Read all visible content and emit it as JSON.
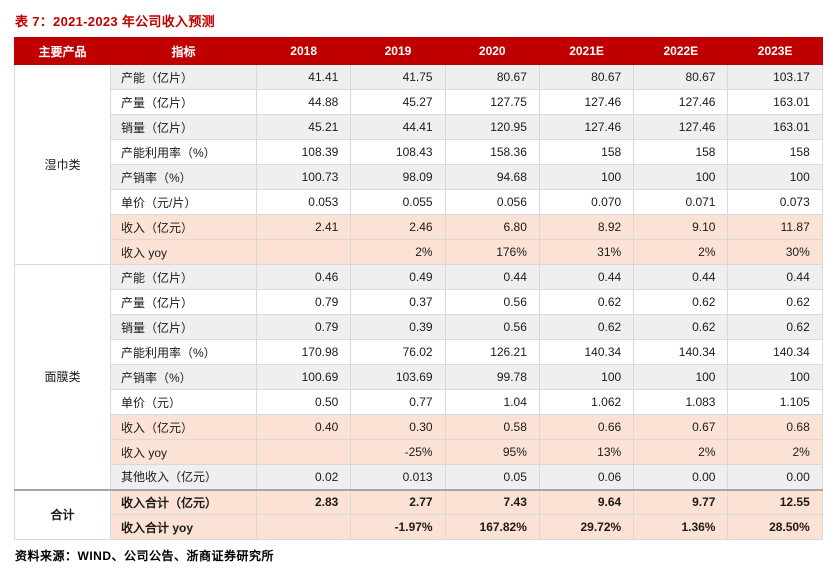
{
  "title": "表 7：2021-2023 年公司收入预测",
  "source": "资料来源：WIND、公司公告、浙商证券研究所",
  "colors": {
    "header_bg": "#c00000",
    "title_color": "#c00000",
    "highlight_row": "#fbe2d5",
    "band_row": "#efefef"
  },
  "table": {
    "headers": [
      "主要产品",
      "指标",
      "2018",
      "2019",
      "2020",
      "2021E",
      "2022E",
      "2023E"
    ],
    "groups": [
      {
        "product": "湿巾类",
        "total": false,
        "rows": [
          {
            "metric": "产能（亿片）",
            "hl": false,
            "values": [
              "41.41",
              "41.75",
              "80.67",
              "80.67",
              "80.67",
              "103.17"
            ]
          },
          {
            "metric": "产量（亿片）",
            "hl": false,
            "values": [
              "44.88",
              "45.27",
              "127.75",
              "127.46",
              "127.46",
              "163.01"
            ]
          },
          {
            "metric": "销量（亿片）",
            "hl": false,
            "values": [
              "45.21",
              "44.41",
              "120.95",
              "127.46",
              "127.46",
              "163.01"
            ]
          },
          {
            "metric": "产能利用率（%）",
            "hl": false,
            "values": [
              "108.39",
              "108.43",
              "158.36",
              "158",
              "158",
              "158"
            ]
          },
          {
            "metric": "产销率（%）",
            "hl": false,
            "values": [
              "100.73",
              "98.09",
              "94.68",
              "100",
              "100",
              "100"
            ]
          },
          {
            "metric": "单价（元/片）",
            "hl": false,
            "values": [
              "0.053",
              "0.055",
              "0.056",
              "0.070",
              "0.071",
              "0.073"
            ]
          },
          {
            "metric": "收入（亿元）",
            "hl": true,
            "values": [
              "2.41",
              "2.46",
              "6.80",
              "8.92",
              "9.10",
              "11.87"
            ]
          },
          {
            "metric": "收入 yoy",
            "hl": true,
            "values": [
              "",
              "2%",
              "176%",
              "31%",
              "2%",
              "30%"
            ]
          }
        ]
      },
      {
        "product": "面膜类",
        "total": false,
        "rows": [
          {
            "metric": "产能（亿片）",
            "hl": false,
            "values": [
              "0.46",
              "0.49",
              "0.44",
              "0.44",
              "0.44",
              "0.44"
            ]
          },
          {
            "metric": "产量（亿片）",
            "hl": false,
            "values": [
              "0.79",
              "0.37",
              "0.56",
              "0.62",
              "0.62",
              "0.62"
            ]
          },
          {
            "metric": "销量（亿片）",
            "hl": false,
            "values": [
              "0.79",
              "0.39",
              "0.56",
              "0.62",
              "0.62",
              "0.62"
            ]
          },
          {
            "metric": "产能利用率（%）",
            "hl": false,
            "values": [
              "170.98",
              "76.02",
              "126.21",
              "140.34",
              "140.34",
              "140.34"
            ]
          },
          {
            "metric": "产销率（%）",
            "hl": false,
            "values": [
              "100.69",
              "103.69",
              "99.78",
              "100",
              "100",
              "100"
            ]
          },
          {
            "metric": "单价（元）",
            "hl": false,
            "values": [
              "0.50",
              "0.77",
              "1.04",
              "1.062",
              "1.083",
              "1.105"
            ]
          },
          {
            "metric": "收入（亿元）",
            "hl": true,
            "values": [
              "0.40",
              "0.30",
              "0.58",
              "0.66",
              "0.67",
              "0.68"
            ]
          },
          {
            "metric": "收入 yoy",
            "hl": true,
            "values": [
              "",
              "-25%",
              "95%",
              "13%",
              "2%",
              "2%"
            ]
          },
          {
            "metric": "其他收入（亿元）",
            "hl": false,
            "values": [
              "0.02",
              "0.013",
              "0.05",
              "0.06",
              "0.00",
              "0.00"
            ]
          }
        ]
      },
      {
        "product": "合计",
        "total": true,
        "rows": [
          {
            "metric": "收入合计（亿元）",
            "hl": true,
            "values": [
              "2.83",
              "2.77",
              "7.43",
              "9.64",
              "9.77",
              "12.55"
            ]
          },
          {
            "metric": "收入合计 yoy",
            "hl": true,
            "values": [
              "",
              "-1.97%",
              "167.82%",
              "29.72%",
              "1.36%",
              "28.50%"
            ]
          }
        ]
      }
    ]
  }
}
